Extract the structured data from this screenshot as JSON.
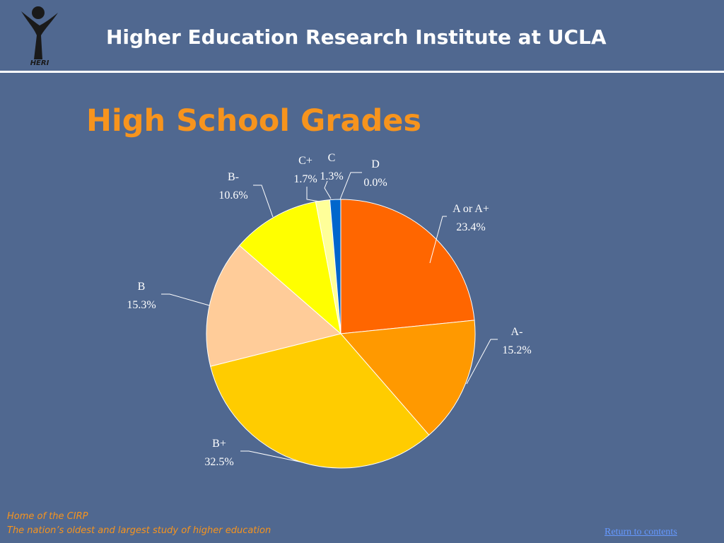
{
  "header": {
    "title": "Higher Education Research Institute at UCLA",
    "logo_text": "HERI",
    "logo_icon": "heri-figure-logo"
  },
  "chart_data": {
    "type": "pie",
    "title": "High School Grades",
    "start_angle_deg": 0,
    "direction": "clockwise",
    "slices": [
      {
        "label": "A or A+",
        "value": 23.4,
        "value_label": "23.4%",
        "color": "#FF6600"
      },
      {
        "label": "A-",
        "value": 15.2,
        "value_label": "15.2%",
        "color": "#FF9900"
      },
      {
        "label": "B+",
        "value": 32.5,
        "value_label": "32.5%",
        "color": "#FFCC00"
      },
      {
        "label": "B",
        "value": 15.3,
        "value_label": "15.3%",
        "color": "#FFCC99"
      },
      {
        "label": "B-",
        "value": 10.6,
        "value_label": "10.6%",
        "color": "#FFFF00"
      },
      {
        "label": "C+",
        "value": 1.7,
        "value_label": "1.7%",
        "color": "#FFFF99"
      },
      {
        "label": "C",
        "value": 1.3,
        "value_label": "1.3%",
        "color": "#0066CC"
      },
      {
        "label": "D",
        "value": 0.0,
        "value_label": "0.0%",
        "color": "#003399"
      }
    ]
  },
  "footer": {
    "line1": "Home of the CIRP",
    "line2": "The nation’s oldest and largest study of higher education",
    "return_link": "Return to contents"
  },
  "colors": {
    "background": "#506890",
    "title_accent": "#F7941D",
    "header_text": "#FFFFFF",
    "link": "#6699FF"
  }
}
